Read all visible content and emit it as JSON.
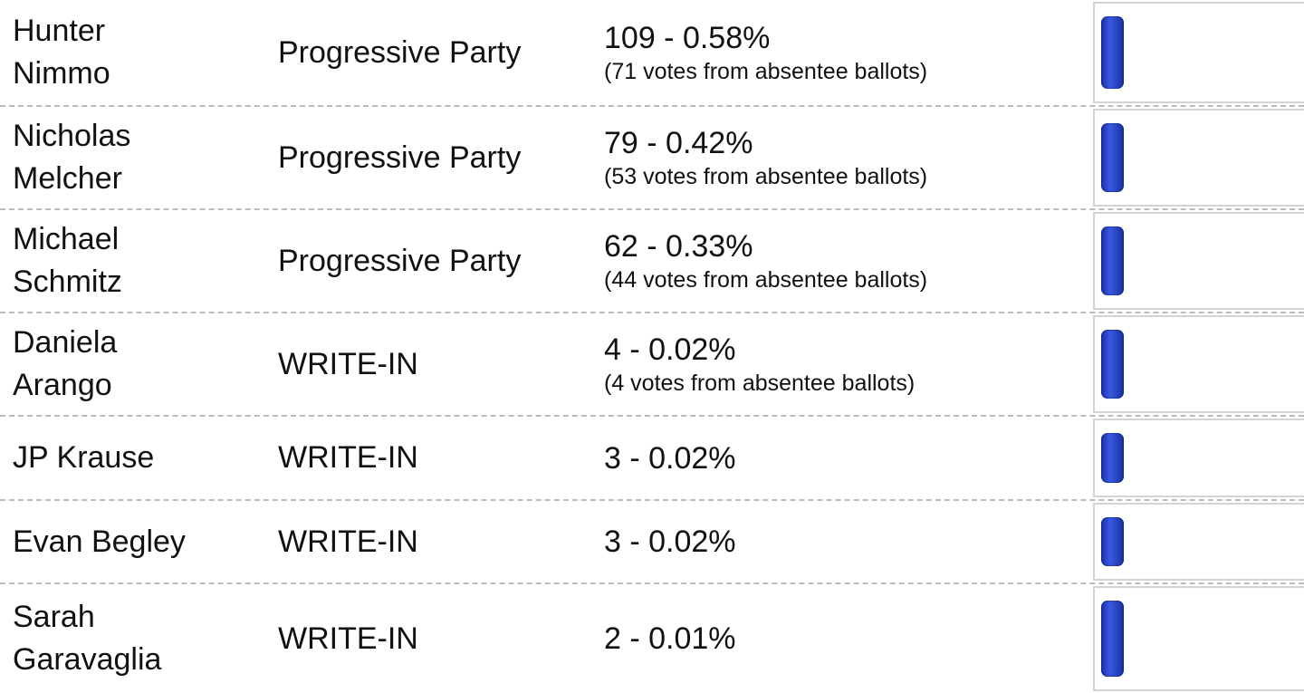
{
  "rows": [
    {
      "name": "Hunter Nimmo",
      "party": "Progressive Party",
      "votes": "109 - 0.58%",
      "absentee": "(71 votes from absentee ballots)"
    },
    {
      "name": "Nicholas Melcher",
      "party": "Progressive Party",
      "votes": "79 - 0.42%",
      "absentee": "(53 votes from absentee ballots)"
    },
    {
      "name": "Michael Schmitz",
      "party": "Progressive Party",
      "votes": "62 - 0.33%",
      "absentee": "(44 votes from absentee ballots)"
    },
    {
      "name": "Daniela Arango",
      "party": "WRITE-IN",
      "votes": "4 - 0.02%",
      "absentee": "(4 votes from absentee ballots)"
    },
    {
      "name": "JP Krause",
      "party": "WRITE-IN",
      "votes": "3 - 0.02%"
    },
    {
      "name": "Evan Begley",
      "party": "WRITE-IN",
      "votes": "3 - 0.02%"
    },
    {
      "name": "Sarah Garavaglia",
      "party": "WRITE-IN",
      "votes": "2 - 0.01%"
    }
  ]
}
